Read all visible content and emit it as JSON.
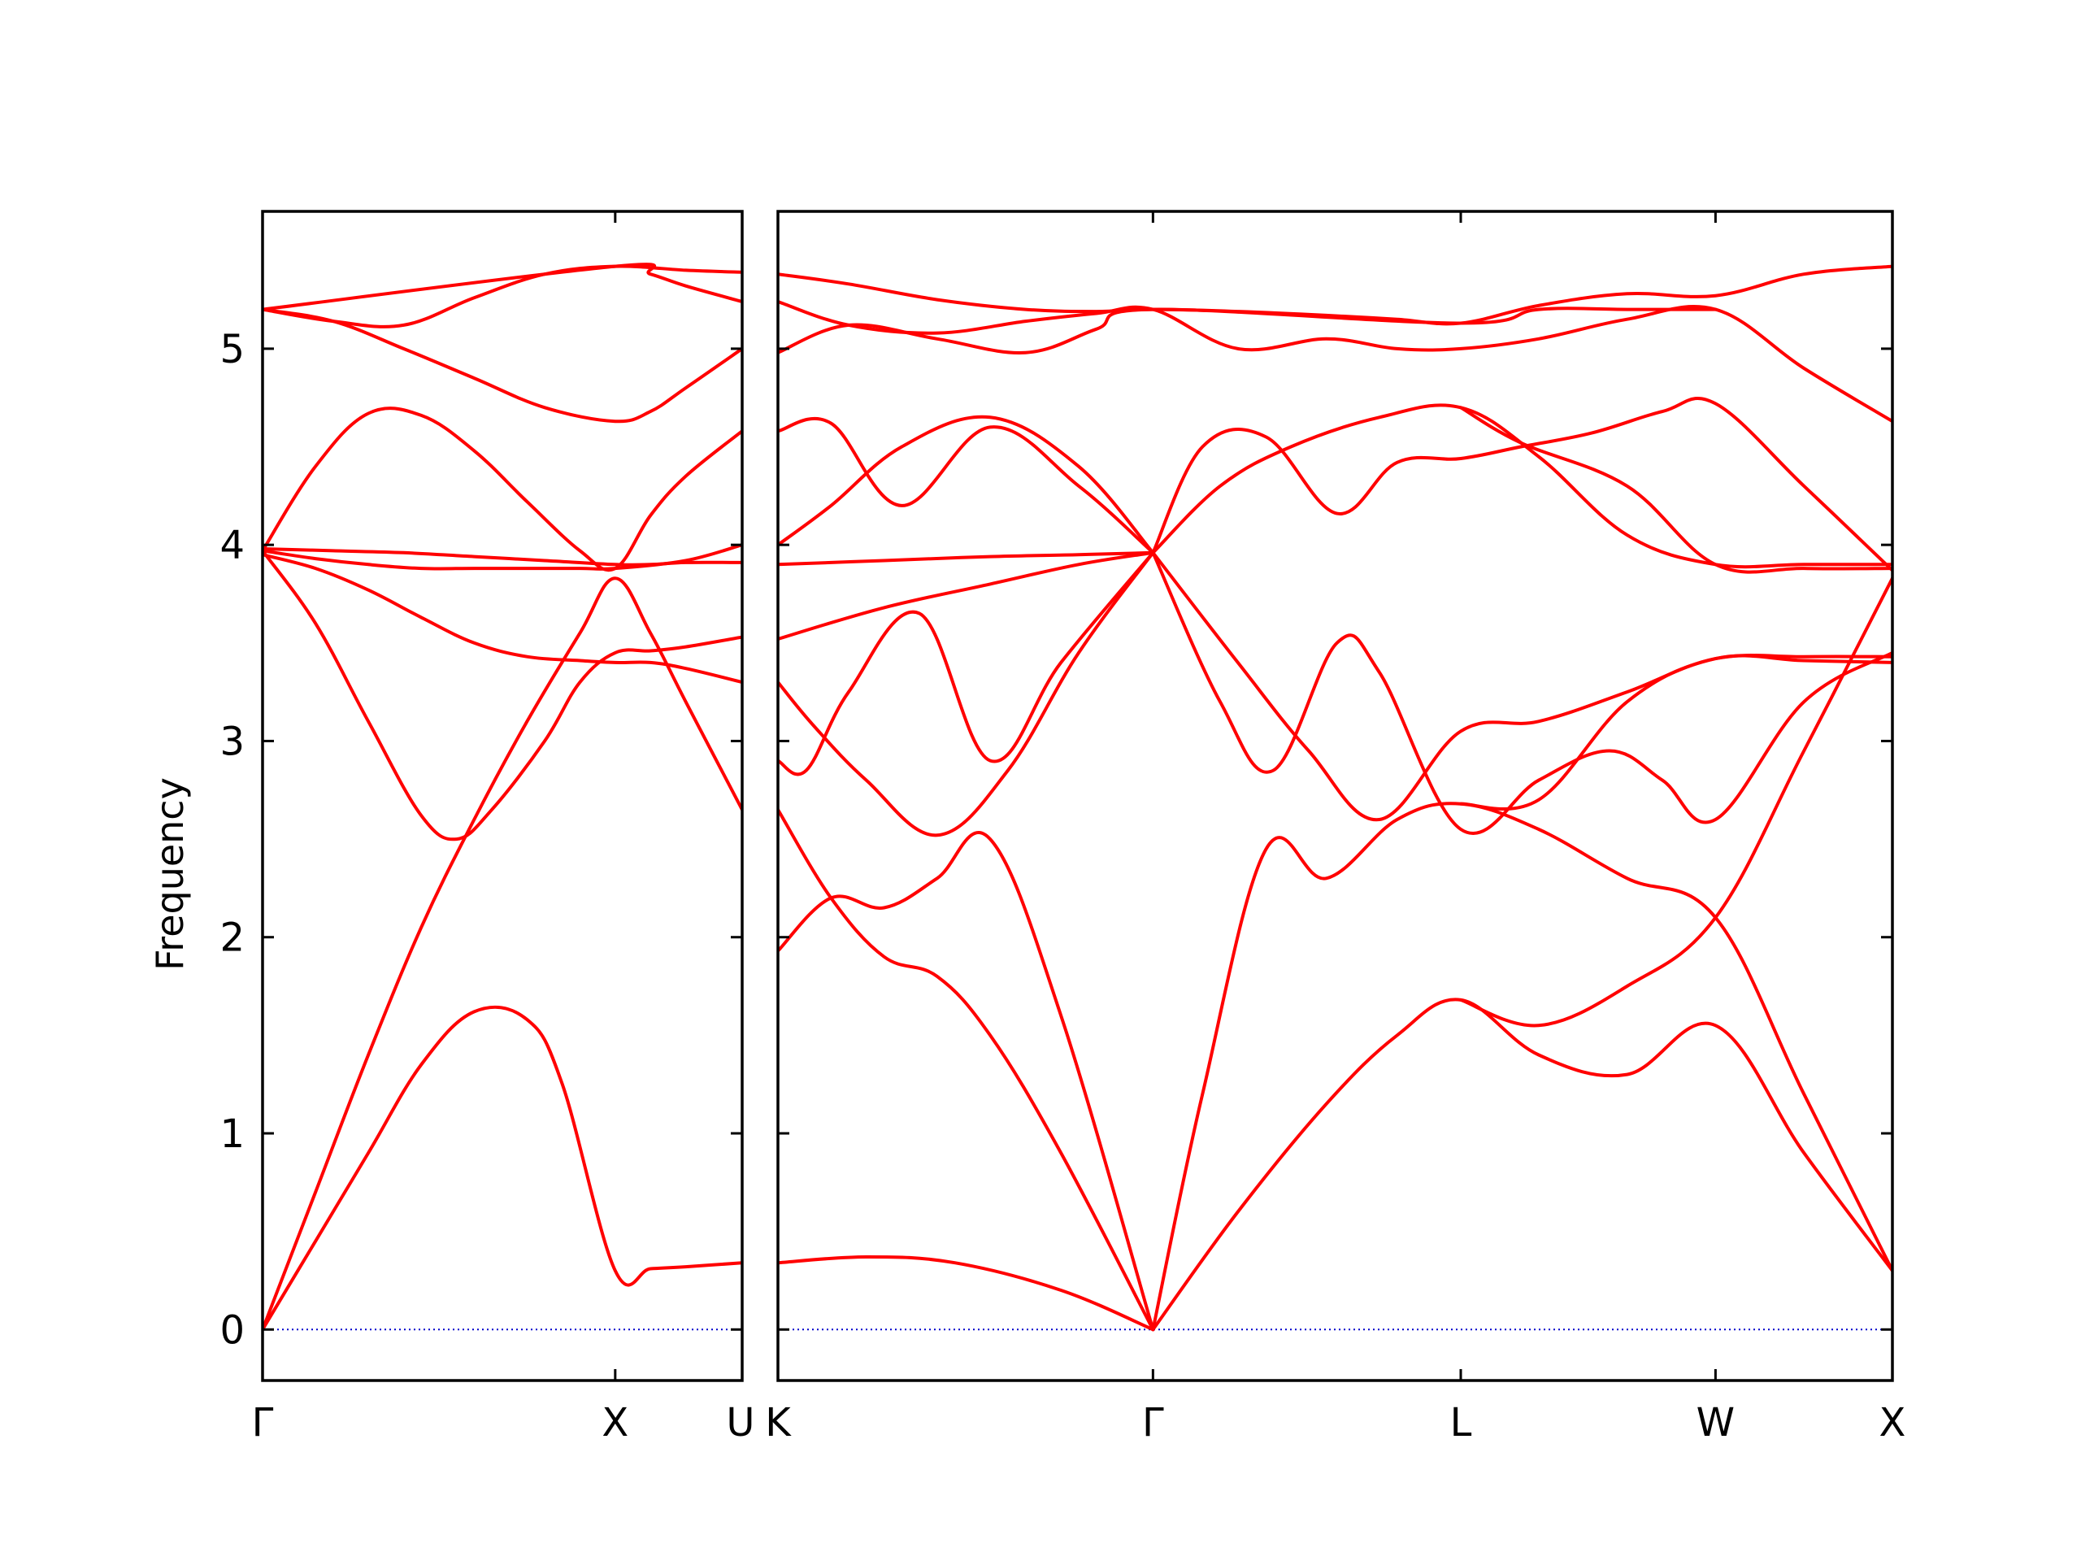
{
  "chart_data": {
    "type": "line",
    "title": "",
    "xlabel": "",
    "ylabel": "Frequency",
    "ylim": [
      -0.26,
      5.7
    ],
    "yticks": [
      0,
      1,
      2,
      3,
      4,
      5
    ],
    "ytick_labels": [
      "0",
      "1",
      "2",
      "3",
      "4",
      "5"
    ],
    "colors": {
      "bands": "#ff0000",
      "zero_line": "#0000cc"
    },
    "grid": false,
    "panels": [
      {
        "name": "panel-1",
        "xlim": [
          0,
          1.36
        ],
        "ticks": [
          {
            "x": 0,
            "label": "Γ"
          },
          {
            "x": 1.0,
            "label": "X"
          }
        ],
        "end_label": "U",
        "zero_line": true,
        "series": [
          {
            "x": [
              0,
              0.15,
              0.3,
              0.45,
              0.6,
              0.75,
              0.85,
              1.0,
              1.1,
              1.2,
              1.36
            ],
            "y": [
              0,
              0.45,
              0.9,
              1.35,
              1.62,
              1.58,
              1.25,
              0.3,
              0.31,
              0.32,
              0.34
            ]
          },
          {
            "x": [
              0,
              0.15,
              0.3,
              0.45,
              0.6,
              0.75,
              0.9,
              1.0,
              1.1,
              1.2,
              1.36
            ],
            "y": [
              0,
              0.7,
              1.4,
              2.05,
              2.6,
              3.1,
              3.55,
              3.83,
              3.55,
              3.2,
              2.65
            ]
          },
          {
            "x": [
              0,
              0.15,
              0.3,
              0.45,
              0.55,
              0.65,
              0.8,
              0.9,
              1.0,
              1.1,
              1.2,
              1.36
            ],
            "y": [
              3.97,
              3.6,
              3.1,
              2.62,
              2.5,
              2.65,
              3.0,
              3.3,
              3.45,
              3.46,
              3.48,
              3.53
            ]
          },
          {
            "x": [
              0,
              0.15,
              0.3,
              0.45,
              0.6,
              0.75,
              0.9,
              1.0,
              1.1,
              1.2,
              1.36
            ],
            "y": [
              3.95,
              3.88,
              3.77,
              3.63,
              3.5,
              3.43,
              3.41,
              3.4,
              3.4,
              3.37,
              3.3
            ]
          },
          {
            "x": [
              0,
              0.2,
              0.4,
              0.6,
              0.8,
              1.0,
              1.1,
              1.2,
              1.36
            ],
            "y": [
              3.98,
              3.97,
              3.96,
              3.94,
              3.92,
              3.9,
              3.9,
              3.91,
              3.91
            ]
          },
          {
            "x": [
              0,
              0.15,
              0.3,
              0.45,
              0.6,
              0.75,
              0.9,
              1.0,
              1.1,
              1.2,
              1.36
            ],
            "y": [
              3.97,
              4.4,
              4.67,
              4.66,
              4.48,
              4.22,
              3.97,
              3.88,
              4.15,
              4.35,
              4.58
            ]
          },
          {
            "x": [
              0,
              0.15,
              0.3,
              0.45,
              0.6,
              0.75,
              0.9,
              1.0,
              1.2,
              1.36
            ],
            "y": [
              3.97,
              3.93,
              3.9,
              3.88,
              3.88,
              3.88,
              3.88,
              3.88,
              3.92,
              4.0
            ]
          },
          {
            "x": [
              0,
              0.2,
              0.4,
              0.6,
              0.8,
              1.0,
              1.1,
              1.2,
              1.36
            ],
            "y": [
              5.2,
              5.14,
              5.0,
              4.85,
              4.7,
              4.63,
              4.68,
              4.8,
              5.0
            ]
          },
          {
            "x": [
              0,
              0.2,
              0.4,
              0.6,
              0.8,
              1.0,
              1.2,
              1.36
            ],
            "y": [
              5.2,
              5.14,
              5.12,
              5.26,
              5.38,
              5.42,
              5.4,
              5.39
            ]
          },
          {
            "x": [
              0,
              1.0,
              1.1,
              1.2,
              1.36
            ],
            "y": [
              5.2,
              5.42,
              5.38,
              5.32,
              5.24
            ]
          }
        ]
      },
      {
        "name": "panel-2",
        "xlim": [
          0,
          3.15
        ],
        "ticks": [
          {
            "x": 0,
            "label": "K"
          },
          {
            "x": 1.06,
            "label": "Γ"
          },
          {
            "x": 1.93,
            "label": "L"
          },
          {
            "x": 2.65,
            "label": "W"
          },
          {
            "x": 3.15,
            "label": "X"
          }
        ],
        "zero_line": true,
        "series": [
          {
            "x": [
              0,
              0.25,
              0.5,
              0.8,
              1.06
            ],
            "y": [
              0.34,
              0.37,
              0.34,
              0.2,
              0
            ]
          },
          {
            "x": [
              0,
              0.15,
              0.3,
              0.45,
              0.6,
              0.8,
              1.06
            ],
            "y": [
              2.65,
              2.2,
              1.9,
              1.8,
              1.5,
              0.9,
              0
            ]
          },
          {
            "x": [
              0,
              0.15,
              0.3,
              0.45,
              0.6,
              0.8,
              1.06
            ],
            "y": [
              1.93,
              2.2,
              2.15,
              2.3,
              2.5,
              1.6,
              0
            ]
          },
          {
            "x": [
              1.06,
              1.3,
              1.55,
              1.75,
              1.93,
              2.15,
              2.4,
              2.65,
              2.9,
              3.15
            ],
            "y": [
              0,
              0.6,
              1.15,
              1.5,
              1.68,
              1.4,
              1.3,
              1.55,
              0.9,
              0.3
            ]
          },
          {
            "x": [
              1.06,
              1.2,
              1.38,
              1.55,
              1.75,
              1.93,
              2.15,
              2.4,
              2.65,
              2.9,
              3.15
            ],
            "y": [
              0,
              1.2,
              2.45,
              2.3,
              2.6,
              2.68,
              2.55,
              2.3,
              2.1,
              1.2,
              0.3
            ]
          },
          {
            "x": [
              1.93,
              2.15,
              2.4,
              2.65,
              2.9,
              3.15
            ],
            "y": [
              1.68,
              1.55,
              1.75,
              2.1,
              2.95,
              3.83
            ]
          },
          {
            "x": [
              1.06,
              1.25,
              1.4,
              1.58,
              1.7,
              1.93,
              2.15,
              2.35,
              2.5,
              2.65,
              2.9,
              3.15
            ],
            "y": [
              3.96,
              3.2,
              2.85,
              3.5,
              3.35,
              2.55,
              2.8,
              2.95,
              2.8,
              2.6,
              3.2,
              3.45
            ]
          },
          {
            "x": [
              1.06,
              1.3,
              1.5,
              1.7,
              1.93,
              2.15,
              2.4,
              2.65,
              2.9,
              3.15
            ],
            "y": [
              3.96,
              3.4,
              2.95,
              2.6,
              3.05,
              3.1,
              3.25,
              3.42,
              3.43,
              3.43
            ]
          },
          {
            "x": [
              1.93,
              2.15,
              2.4,
              2.65,
              2.9,
              3.15
            ],
            "y": [
              2.68,
              2.7,
              3.2,
              3.42,
              3.41,
              3.4
            ]
          },
          {
            "x": [
              0,
              0.1,
              0.25,
              0.45,
              0.65,
              0.85,
              1.06
            ],
            "y": [
              3.3,
              3.08,
              2.8,
              2.52,
              2.85,
              3.45,
              3.96
            ]
          },
          {
            "x": [
              0,
              0.08,
              0.2,
              0.4,
              0.6,
              0.8,
              1.06
            ],
            "y": [
              2.9,
              2.85,
              3.25,
              3.65,
              2.9,
              3.4,
              3.96
            ]
          },
          {
            "x": [
              0,
              0.3,
              0.6,
              0.85,
              1.06
            ],
            "y": [
              3.52,
              3.68,
              3.8,
              3.9,
              3.96
            ]
          },
          {
            "x": [
              0,
              0.3,
              0.6,
              0.85,
              1.06
            ],
            "y": [
              3.9,
              3.92,
              3.94,
              3.95,
              3.96
            ]
          },
          {
            "x": [
              0,
              0.15,
              0.35,
              0.6,
              0.85,
              1.06
            ],
            "y": [
              4.58,
              4.62,
              4.2,
              4.6,
              4.3,
              3.96
            ]
          },
          {
            "x": [
              0,
              0.15,
              0.35,
              0.6,
              0.85,
              1.06
            ],
            "y": [
              4.0,
              4.2,
              4.5,
              4.65,
              4.4,
              3.96
            ]
          },
          {
            "x": [
              1.06,
              1.25,
              1.45,
              1.7,
              1.93,
              2.15,
              2.4,
              2.65,
              2.9,
              3.15
            ],
            "y": [
              3.96,
              4.3,
              4.5,
              4.65,
              4.7,
              4.45,
              4.05,
              3.9,
              3.9,
              3.9
            ]
          },
          {
            "x": [
              1.06,
              1.2,
              1.38,
              1.58,
              1.75,
              1.93,
              2.1,
              2.3,
              2.5,
              2.65,
              2.9,
              3.15
            ],
            "y": [
              3.96,
              4.5,
              4.55,
              4.16,
              4.42,
              4.44,
              4.5,
              4.57,
              4.68,
              4.72,
              4.3,
              3.87
            ]
          },
          {
            "x": [
              1.93,
              2.1,
              2.4,
              2.65,
              2.9,
              3.15
            ],
            "y": [
              4.7,
              4.52,
              4.3,
              3.9,
              3.88,
              3.88
            ]
          },
          {
            "x": [
              0,
              0.2,
              0.45,
              0.7,
              0.9,
              1.06,
              1.3,
              1.55,
              1.75,
              1.93,
              2.15,
              2.4,
              2.65,
              2.9,
              3.15
            ],
            "y": [
              5.38,
              5.33,
              5.25,
              5.2,
              5.19,
              5.2,
              5.19,
              5.17,
              5.15,
              5.13,
              5.22,
              5.28,
              5.27,
              5.38,
              5.42
            ]
          },
          {
            "x": [
              0,
              0.2,
              0.45,
              0.7,
              0.9,
              1.06,
              1.3,
              1.55,
              1.75,
              1.93,
              2.15,
              2.4,
              2.65,
              2.9,
              3.15
            ],
            "y": [
              5.24,
              5.12,
              5.08,
              5.14,
              5.18,
              5.2,
              5.0,
              5.05,
              5.0,
              5.0,
              5.05,
              5.15,
              5.2,
              4.9,
              4.63
            ]
          },
          {
            "x": [
              0,
              0.2,
              0.45,
              0.7,
              0.9,
              1.06,
              1.93,
              2.15,
              2.4,
              2.65
            ],
            "y": [
              4.98,
              5.12,
              5.05,
              4.98,
              5.1,
              5.2,
              5.13,
              5.2,
              5.2,
              5.2
            ]
          }
        ]
      }
    ]
  }
}
